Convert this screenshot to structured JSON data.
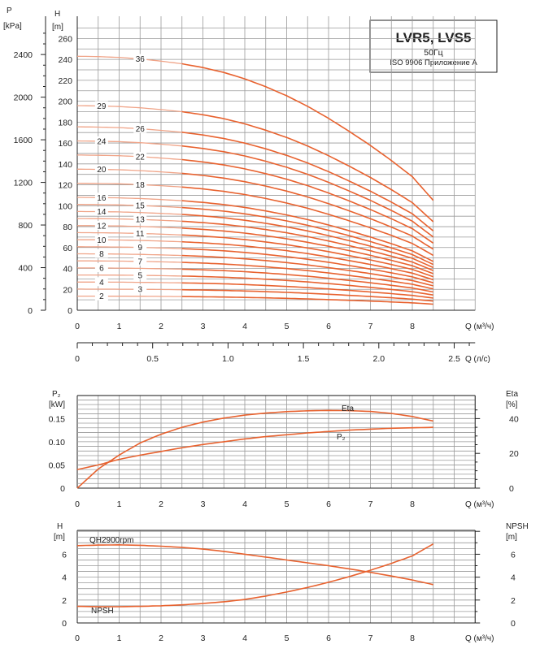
{
  "title_box": {
    "title": "LVR5, LVS5",
    "freq": "50Гц",
    "standard": "ISO 9906 Приложение A"
  },
  "colors": {
    "curve": "#e8622f",
    "curve_light": "#f0a488",
    "grid": "#9a9a9a"
  },
  "chart_data": [
    {
      "type": "line",
      "id": "head",
      "ylabel_left": "P\n[kPa]",
      "ylabel_h": "H\n[m]",
      "xlabel": "Q (м³/ч)",
      "xlabel2": "Q (л/с)",
      "x_ticks": [
        0,
        1,
        2,
        3,
        4,
        5,
        6,
        7,
        8
      ],
      "x2_ticks": [
        "0",
        "0.5",
        "1.0",
        "1.5",
        "2.0",
        "2.5"
      ],
      "y_ticks": [
        0,
        20,
        40,
        60,
        80,
        100,
        120,
        140,
        160,
        180,
        200,
        220,
        240,
        260
      ],
      "p_ticks": [
        0,
        400,
        800,
        1200,
        1600,
        2000,
        2400
      ],
      "xlim": [
        0,
        9.6
      ],
      "ylim": [
        0,
        270
      ],
      "stages": [
        2,
        3,
        4,
        5,
        6,
        7,
        8,
        9,
        10,
        11,
        12,
        13,
        14,
        15,
        16,
        18,
        20,
        22,
        24,
        26,
        29,
        36
      ],
      "stage_labels": [
        "2",
        "3",
        "4",
        "5",
        "6",
        "7",
        "8",
        "9",
        "10",
        "11",
        "12",
        "13",
        "14",
        "15",
        "16",
        "18",
        "20",
        "22",
        "24",
        "26",
        "29",
        "36"
      ],
      "per_stage_head_q": [
        0,
        0.5,
        1,
        1.5,
        2,
        2.5,
        3,
        3.5,
        4,
        4.5,
        5,
        5.5,
        6,
        6.5,
        7,
        7.5,
        8,
        8.5
      ],
      "per_stage_head_h": [
        6.75,
        6.74,
        6.72,
        6.68,
        6.62,
        6.55,
        6.45,
        6.32,
        6.15,
        5.94,
        5.7,
        5.42,
        5.1,
        4.75,
        4.38,
        3.98,
        3.55,
        2.92
      ]
    },
    {
      "type": "line",
      "id": "power",
      "ylabel_left": "P₂\n[kW]",
      "ylabel_right": "Eta\n[%]",
      "xlabel": "Q (м³/ч)",
      "x_ticks": [
        0,
        1,
        2,
        3,
        4,
        5,
        6,
        7,
        8
      ],
      "y_ticks": [
        "0",
        "0.05",
        "0.10",
        "0.15"
      ],
      "eta_ticks": [
        0,
        20,
        40
      ],
      "series": [
        {
          "name": "Eta",
          "x": [
            0,
            0.5,
            1,
            1.5,
            2,
            2.5,
            3,
            3.5,
            4,
            4.5,
            5,
            5.5,
            6,
            6.5,
            7,
            7.5,
            8,
            8.5
          ],
          "y": [
            0,
            11,
            19,
            26,
            31,
            35,
            38,
            40.3,
            42,
            43.2,
            44,
            44.5,
            44.7,
            44.6,
            44.1,
            43,
            41.2,
            38.6
          ]
        },
        {
          "name": "P₂",
          "x": [
            0,
            0.5,
            1,
            1.5,
            2,
            2.5,
            3,
            3.5,
            4,
            4.5,
            5,
            5.5,
            6,
            6.5,
            7,
            7.5,
            8,
            8.5
          ],
          "y": [
            0.04,
            0.05,
            0.062,
            0.071,
            0.079,
            0.087,
            0.094,
            0.1,
            0.106,
            0.111,
            0.115,
            0.119,
            0.122,
            0.125,
            0.127,
            0.129,
            0.13,
            0.131
          ]
        }
      ]
    },
    {
      "type": "line",
      "id": "npsh",
      "ylabel_left": "H\n[m]",
      "ylabel_right": "NPSH\n[m]",
      "xlabel": "Q (м³/ч)",
      "x_ticks": [
        0,
        1,
        2,
        3,
        4,
        5,
        6,
        7,
        8
      ],
      "y_ticks": [
        0,
        2,
        4,
        6
      ],
      "series": [
        {
          "name": "QH2900rpm",
          "x": [
            0,
            0.5,
            1,
            1.5,
            2,
            2.5,
            3,
            3.5,
            4,
            4.5,
            5,
            5.5,
            6,
            6.5,
            7,
            7.5,
            8,
            8.5
          ],
          "y": [
            6.75,
            6.8,
            6.82,
            6.78,
            6.7,
            6.6,
            6.45,
            6.25,
            6.0,
            5.75,
            5.5,
            5.25,
            5.0,
            4.72,
            4.42,
            4.1,
            3.75,
            3.35
          ]
        },
        {
          "name": "NPSH",
          "x": [
            0,
            0.5,
            1,
            1.5,
            2,
            2.5,
            3,
            3.5,
            4,
            4.5,
            5,
            5.5,
            6,
            6.5,
            7,
            7.5,
            8,
            8.5
          ],
          "y": [
            1.45,
            1.42,
            1.42,
            1.45,
            1.5,
            1.58,
            1.7,
            1.85,
            2.05,
            2.35,
            2.7,
            3.1,
            3.55,
            4.05,
            4.6,
            5.2,
            5.85,
            6.9
          ]
        }
      ]
    }
  ]
}
